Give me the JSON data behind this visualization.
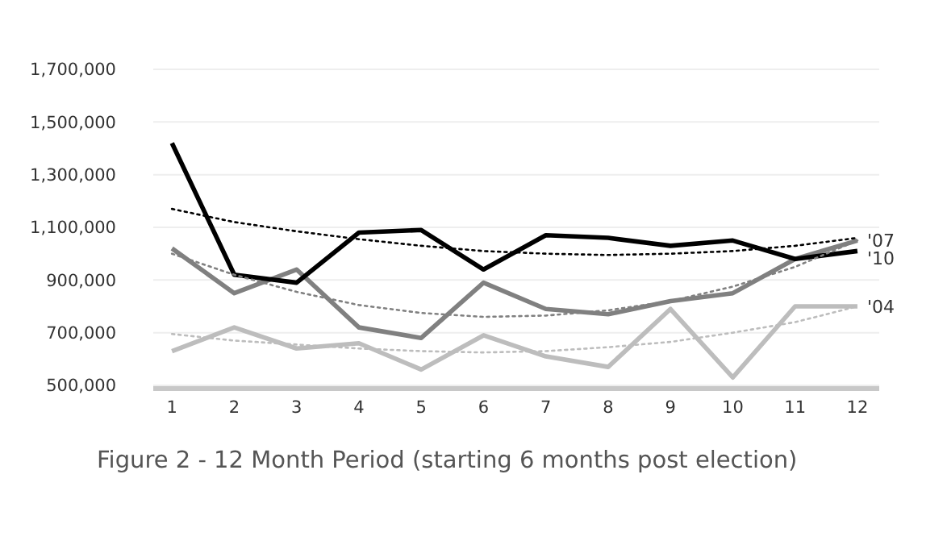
{
  "chart_data": {
    "type": "line",
    "title": "Figure 2 - 12 Month Period (starting 6 months post election)",
    "x": [
      1,
      2,
      3,
      4,
      5,
      6,
      7,
      8,
      9,
      10,
      11,
      12
    ],
    "xlim": [
      0.7,
      12.35
    ],
    "xticks": [
      1,
      2,
      3,
      4,
      5,
      6,
      7,
      8,
      9,
      10,
      11,
      12
    ],
    "ylim": [
      500000,
      1700000
    ],
    "yticks": [
      {
        "value": 500000,
        "label": "500,000"
      },
      {
        "value": 700000,
        "label": "700,000"
      },
      {
        "value": 900000,
        "label": "900,000"
      },
      {
        "value": 1100000,
        "label": "1,100,000"
      },
      {
        "value": 1300000,
        "label": "1,300,000"
      },
      {
        "value": 1500000,
        "label": "1,500,000"
      },
      {
        "value": 1700000,
        "label": "1,700,000"
      }
    ],
    "grid": "y",
    "marker": "none",
    "line_style": "solid",
    "series": [
      {
        "name": "'07",
        "color": "#808080",
        "values": [
          1020000,
          850000,
          940000,
          720000,
          680000,
          890000,
          790000,
          770000,
          820000,
          850000,
          980000,
          1050000
        ]
      },
      {
        "name": "'10",
        "color": "#000000",
        "values": [
          1420000,
          920000,
          890000,
          1080000,
          1090000,
          940000,
          1070000,
          1060000,
          1030000,
          1050000,
          980000,
          1010000
        ]
      },
      {
        "name": "'04",
        "color": "#bdbdbd",
        "values": [
          630000,
          720000,
          640000,
          660000,
          560000,
          690000,
          610000,
          570000,
          790000,
          530000,
          800000,
          800000
        ]
      },
      {
        "type": "line",
        "line_style": "dotted",
        "color": "#000000",
        "values": [
          1170000,
          1120000,
          1085000,
          1055000,
          1030000,
          1010000,
          1000000,
          995000,
          1000000,
          1010000,
          1030000,
          1060000
        ]
      },
      {
        "type": "line",
        "line_style": "dotted",
        "color": "#808080",
        "values": [
          1000000,
          920000,
          855000,
          805000,
          775000,
          760000,
          765000,
          785000,
          820000,
          875000,
          950000,
          1050000
        ]
      },
      {
        "type": "line",
        "line_style": "dotted",
        "color": "#bdbdbd",
        "values": [
          695000,
          670000,
          655000,
          640000,
          630000,
          625000,
          630000,
          645000,
          665000,
          700000,
          740000,
          800000
        ]
      }
    ]
  }
}
